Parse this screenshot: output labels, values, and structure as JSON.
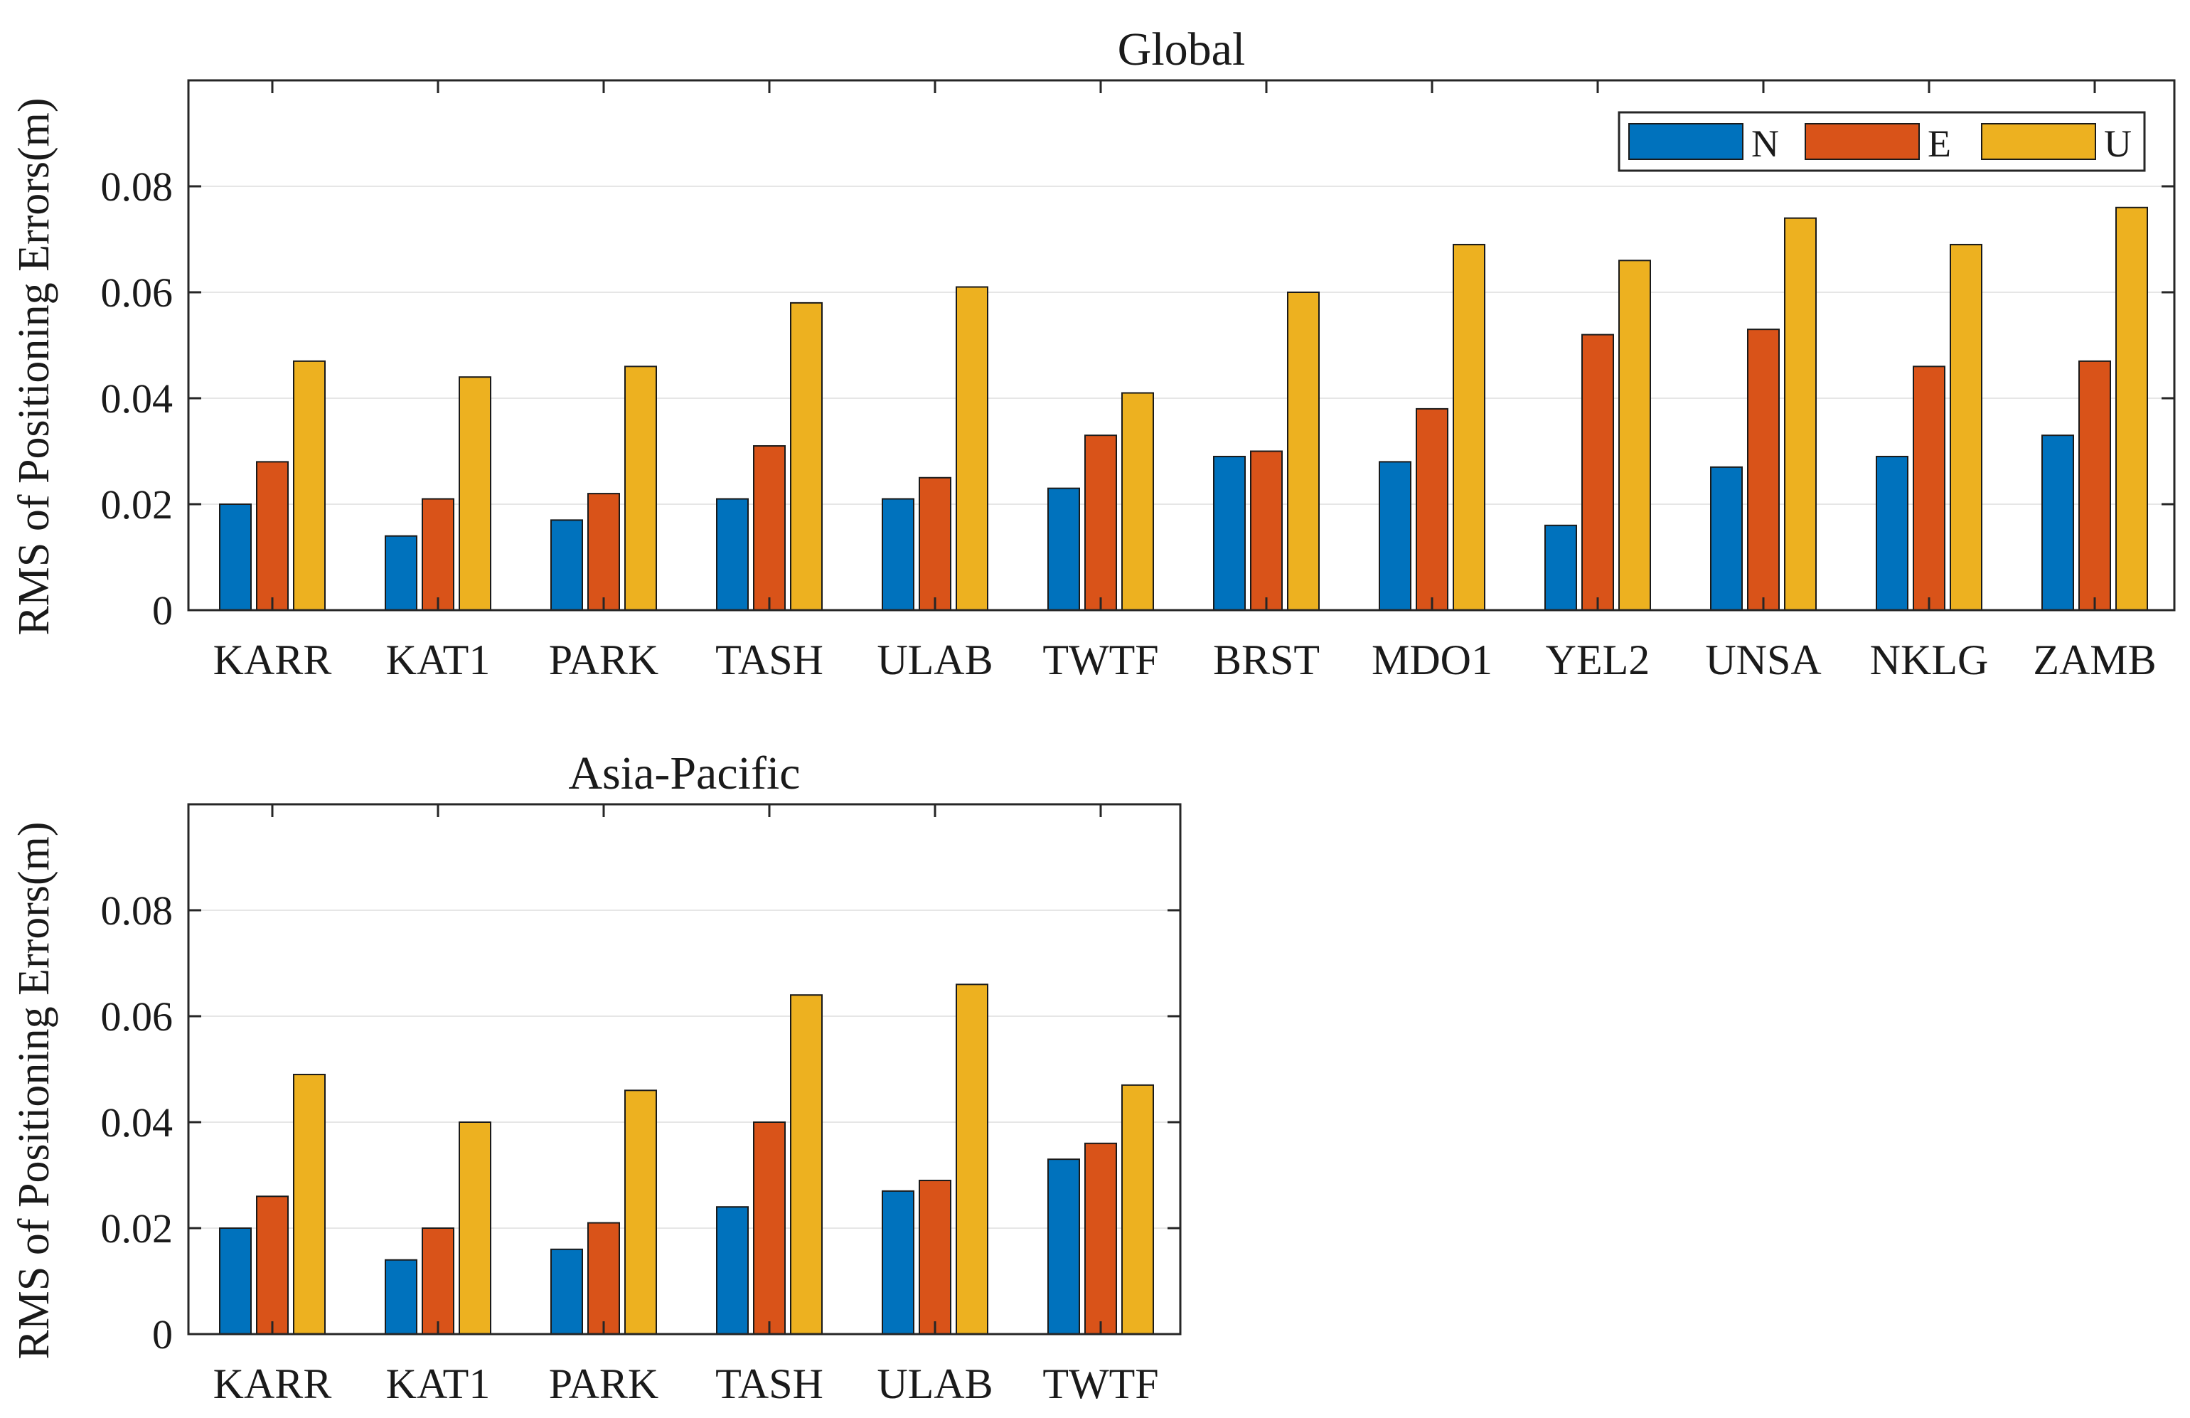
{
  "figure": {
    "colors": {
      "N": "#0072BD",
      "E": "#D95319",
      "U": "#EDB120",
      "axis": "#262626",
      "grid": "#e6e6e6",
      "bar_edge": "#1a1a1a"
    },
    "legend_labels": [
      "N",
      "E",
      "U"
    ]
  },
  "chart_data": [
    {
      "type": "bar",
      "title": "Global",
      "xlabel": "",
      "ylabel": "RMS of Positioning Errors(m)",
      "ylim": [
        0,
        0.1
      ],
      "yticks": [
        0,
        0.02,
        0.04,
        0.06,
        0.08
      ],
      "ytick_labels": [
        "0",
        "0.02",
        "0.04",
        "0.06",
        "0.08"
      ],
      "grid": true,
      "legend": "top-right",
      "categories": [
        "KARR",
        "KAT1",
        "PARK",
        "TASH",
        "ULAB",
        "TWTF",
        "BRST",
        "MDO1",
        "YEL2",
        "UNSA",
        "NKLG",
        "ZAMB"
      ],
      "series": [
        {
          "name": "N",
          "values": [
            0.02,
            0.014,
            0.017,
            0.021,
            0.021,
            0.023,
            0.029,
            0.028,
            0.016,
            0.027,
            0.029,
            0.033
          ]
        },
        {
          "name": "E",
          "values": [
            0.028,
            0.021,
            0.022,
            0.031,
            0.025,
            0.033,
            0.03,
            0.038,
            0.052,
            0.053,
            0.046,
            0.047
          ]
        },
        {
          "name": "U",
          "values": [
            0.047,
            0.044,
            0.046,
            0.058,
            0.061,
            0.041,
            0.06,
            0.069,
            0.066,
            0.074,
            0.069,
            0.076
          ]
        }
      ]
    },
    {
      "type": "bar",
      "title": "Asia-Pacific",
      "xlabel": "",
      "ylabel": "RMS of Positioning Errors(m)",
      "ylim": [
        0,
        0.1
      ],
      "yticks": [
        0,
        0.02,
        0.04,
        0.06,
        0.08
      ],
      "ytick_labels": [
        "0",
        "0.02",
        "0.04",
        "0.06",
        "0.08"
      ],
      "grid": true,
      "legend": "none",
      "categories": [
        "KARR",
        "KAT1",
        "PARK",
        "TASH",
        "ULAB",
        "TWTF"
      ],
      "series": [
        {
          "name": "N",
          "values": [
            0.02,
            0.014,
            0.016,
            0.024,
            0.027,
            0.033
          ]
        },
        {
          "name": "E",
          "values": [
            0.026,
            0.02,
            0.021,
            0.04,
            0.029,
            0.036
          ]
        },
        {
          "name": "U",
          "values": [
            0.049,
            0.04,
            0.046,
            0.064,
            0.066,
            0.047
          ]
        }
      ]
    }
  ]
}
